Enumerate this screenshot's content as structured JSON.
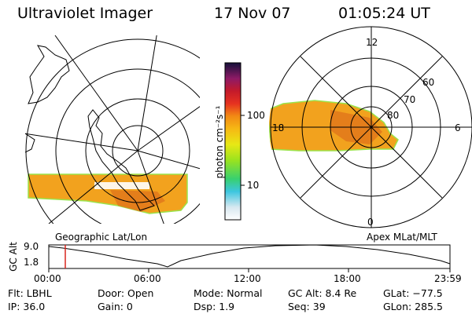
{
  "header": {
    "instrument": "Ultraviolet Imager",
    "date": "17 Nov 07",
    "time": "01:05:24 UT"
  },
  "panels": {
    "left_title": "Geographic Lat/Lon",
    "right_title": "Apex MLat/MLT"
  },
  "colorbar": {
    "unit_label": "photon cm⁻²s⁻¹",
    "tick_100": "100",
    "tick_10": "10"
  },
  "polar_labels": {
    "mlt_12": "12",
    "mlt_18": "18",
    "mlt_6": "6",
    "mlt_0": "0",
    "lat_60": "60",
    "lat_70": "70",
    "lat_80": "80"
  },
  "altitude_plot": {
    "ylabel": "GC Alt",
    "ytick_top": "9.0",
    "ytick_bottom": "1.8",
    "xticks": [
      "00:00",
      "06:00",
      "12:00",
      "18:00",
      "23:59"
    ]
  },
  "status": {
    "filter": "Flt: LBHL",
    "ip": "IP: 36.0",
    "door": "Door: Open",
    "gain": "Gain:  0",
    "mode": "Mode: Normal",
    "dsp": "Dsp:     1.9",
    "gc_alt": "GC Alt: 8.4 Re",
    "seq": "Seq: 39",
    "glat": "GLat: −77.5",
    "glon": "GLon: 285.5"
  },
  "colors": {
    "aurora_fill": "#f2a21e",
    "aurora_hot": "#e0761a",
    "aurora_edge": "#9be34b",
    "marker": "#d8261f"
  }
}
